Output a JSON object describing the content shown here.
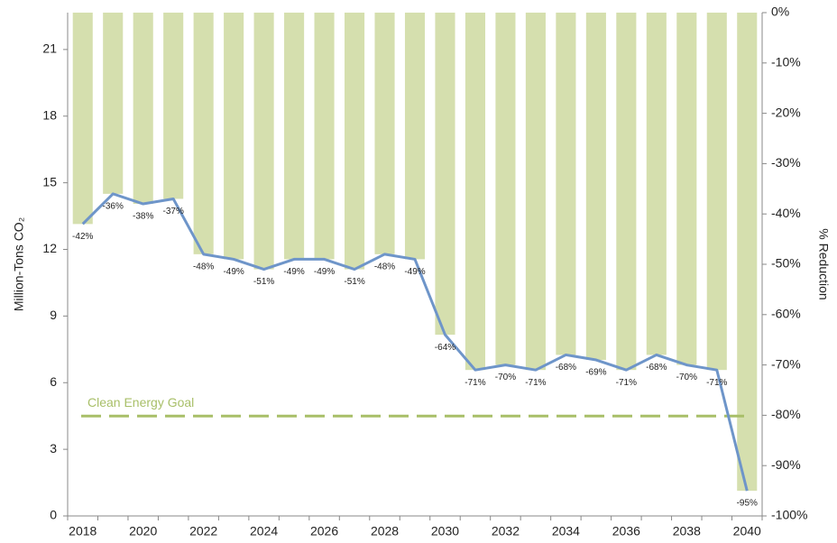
{
  "chart_data": {
    "type": "bar-line",
    "y_label": "Million-Tons CO₂",
    "y2_label": "% Reduction",
    "categories": [
      "2018",
      null,
      "2020",
      null,
      "2022",
      null,
      "2024",
      null,
      "2026",
      null,
      "2028",
      null,
      "2030",
      null,
      "2032",
      null,
      "2034",
      null,
      "2036",
      null,
      "2038",
      null,
      "2040"
    ],
    "series": [
      {
        "axis": "y2",
        "bar_color": "#d5dfae",
        "line_color": "#6e95c9",
        "values": [
          -42,
          -36,
          -38,
          -37,
          -48,
          -49,
          -51,
          -49,
          -49,
          -51,
          -48,
          -49,
          -64,
          -71,
          -70,
          -71,
          -68,
          -69,
          -71,
          -68,
          -70,
          -71,
          -95
        ],
        "value_labels": [
          "-42%",
          "-36%",
          "-38%",
          "-37%",
          "-48%",
          "-49%",
          "-51%",
          "-49%",
          "-49%",
          "-51%",
          "-48%",
          "-49%",
          "-64%",
          "-71%",
          "-70%",
          "-71%",
          "-68%",
          "-69%",
          "-71%",
          "-68%",
          "-70%",
          "-71%",
          "-95%"
        ]
      }
    ],
    "ylim": [
      0,
      22.66
    ],
    "yticks": [
      0,
      3,
      6,
      9,
      12,
      15,
      18,
      21
    ],
    "y2lim": [
      -100,
      0
    ],
    "y2ticks": [
      {
        "value": 0,
        "label": "0%"
      },
      {
        "value": -10,
        "label": "-10%"
      },
      {
        "value": -20,
        "label": "-20%"
      },
      {
        "value": -30,
        "label": "-30%"
      },
      {
        "value": -40,
        "label": "-40%"
      },
      {
        "value": -50,
        "label": "-50%"
      },
      {
        "value": -60,
        "label": "-60%"
      },
      {
        "value": -70,
        "label": "-70%"
      },
      {
        "value": -80,
        "label": "-80%"
      },
      {
        "value": -90,
        "label": "-90%"
      },
      {
        "value": -100,
        "label": "-100%"
      }
    ],
    "goal": {
      "label": "Clean Energy Goal",
      "value": 4.5,
      "color": "#a8bf68"
    }
  }
}
